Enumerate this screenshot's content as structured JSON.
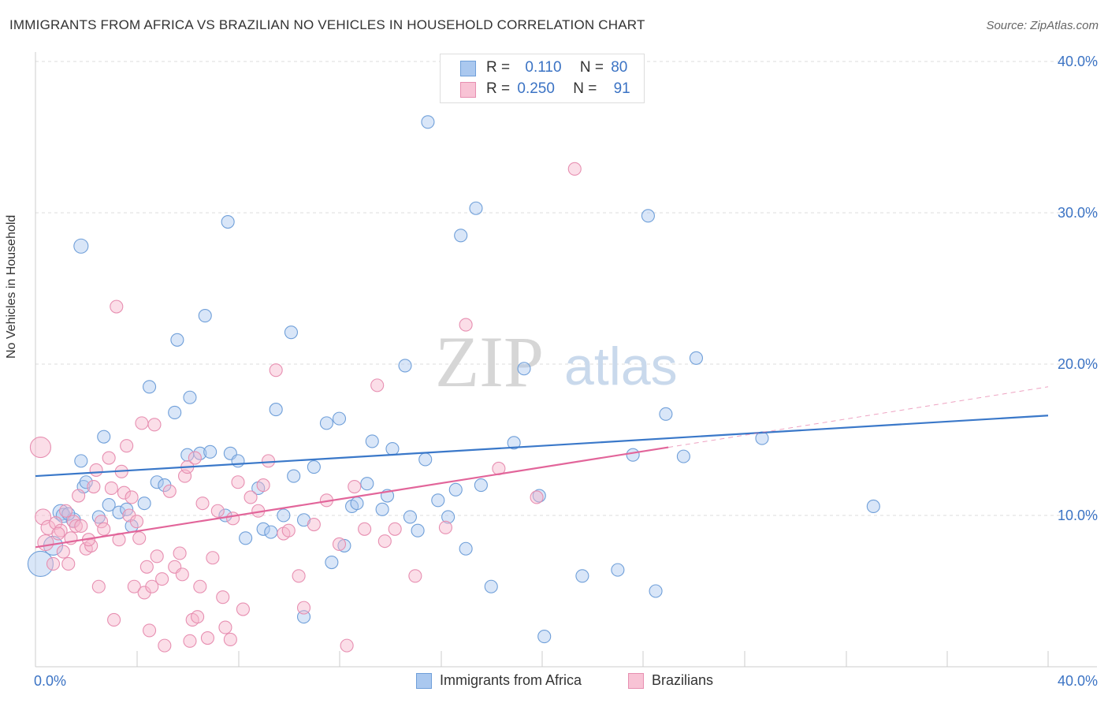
{
  "title": "IMMIGRANTS FROM AFRICA VS BRAZILIAN NO VEHICLES IN HOUSEHOLD CORRELATION CHART",
  "source": "Source: ZipAtlas.com",
  "watermark": {
    "zip": "ZIP",
    "atlas": "atlas"
  },
  "colors": {
    "blue": "#3a78c9",
    "blue_fill": "#aac8ef",
    "pink": "#e2659a",
    "pink_fill": "#f6b6cc",
    "tick_text": "#3b73c4"
  },
  "legend_top": [
    {
      "r_label": "R =",
      "r_value": "0.110",
      "n_label": "N =",
      "n_value": "80"
    },
    {
      "r_label": "R =",
      "r_value": "0.250",
      "n_label": "N =",
      "n_value": "91"
    }
  ],
  "legend_bottom": [
    "Immigrants from Africa",
    "Brazilians"
  ],
  "chart_data": {
    "type": "scatter",
    "title": "IMMIGRANTS FROM AFRICA VS BRAZILIAN NO VEHICLES IN HOUSEHOLD CORRELATION CHART",
    "xlabel": "",
    "ylabel": "No Vehicles in Household",
    "xlim": [
      0,
      40
    ],
    "ylim": [
      0,
      40
    ],
    "x_tick_labels": [
      "0.0%",
      "40.0%"
    ],
    "y_tick_labels": [
      "10.0%",
      "20.0%",
      "30.0%",
      "40.0%"
    ],
    "y_ticks": [
      10,
      20,
      30,
      40
    ],
    "grid": true,
    "legend_position": "top-center",
    "series": [
      {
        "name": "Immigrants from Africa",
        "r": 0.11,
        "n": 80,
        "trend": {
          "x": [
            0,
            40
          ],
          "y": [
            12.6,
            16.6
          ]
        },
        "points": [
          [
            0.2,
            6.8,
            16
          ],
          [
            0.7,
            8.0,
            12
          ],
          [
            1.0,
            10.2,
            10
          ],
          [
            1.1,
            10.0,
            9
          ],
          [
            1.5,
            9.7,
            9
          ],
          [
            1.9,
            11.9,
            8
          ],
          [
            1.8,
            13.6,
            8
          ],
          [
            2.0,
            12.2,
            8
          ],
          [
            1.8,
            27.8,
            9
          ],
          [
            2.7,
            15.2,
            8
          ],
          [
            2.9,
            10.7,
            8
          ],
          [
            3.3,
            10.2,
            8
          ],
          [
            3.8,
            9.3,
            8
          ],
          [
            4.3,
            10.8,
            8
          ],
          [
            4.5,
            18.5,
            8
          ],
          [
            4.8,
            12.2,
            8
          ],
          [
            5.1,
            12.0,
            8
          ],
          [
            5.5,
            16.8,
            8
          ],
          [
            5.6,
            21.6,
            8
          ],
          [
            6.1,
            17.8,
            8
          ],
          [
            6.0,
            14.0,
            8
          ],
          [
            6.5,
            14.1,
            8
          ],
          [
            6.7,
            23.2,
            8
          ],
          [
            6.9,
            14.2,
            8
          ],
          [
            7.6,
            29.4,
            8
          ],
          [
            7.7,
            14.1,
            8
          ],
          [
            8.0,
            13.6,
            8
          ],
          [
            7.5,
            10.0,
            8
          ],
          [
            8.3,
            8.5,
            8
          ],
          [
            8.8,
            11.8,
            8
          ],
          [
            9.0,
            9.1,
            8
          ],
          [
            9.3,
            8.9,
            8
          ],
          [
            9.5,
            17.0,
            8
          ],
          [
            9.8,
            10.0,
            8
          ],
          [
            10.1,
            22.1,
            8
          ],
          [
            10.2,
            12.6,
            8
          ],
          [
            10.6,
            9.7,
            8
          ],
          [
            11.0,
            13.2,
            8
          ],
          [
            11.5,
            16.1,
            8
          ],
          [
            11.7,
            6.9,
            8
          ],
          [
            12.0,
            16.4,
            8
          ],
          [
            12.2,
            8.0,
            8
          ],
          [
            12.5,
            10.6,
            8
          ],
          [
            12.7,
            10.8,
            8
          ],
          [
            13.1,
            12.1,
            8
          ],
          [
            13.3,
            14.9,
            8
          ],
          [
            13.7,
            10.4,
            8
          ],
          [
            13.9,
            11.3,
            8
          ],
          [
            14.1,
            14.4,
            8
          ],
          [
            14.6,
            19.9,
            8
          ],
          [
            14.8,
            9.9,
            8
          ],
          [
            15.1,
            9.0,
            8
          ],
          [
            15.4,
            13.7,
            8
          ],
          [
            15.5,
            36.0,
            8
          ],
          [
            15.9,
            11.0,
            8
          ],
          [
            16.3,
            9.9,
            8
          ],
          [
            16.6,
            11.7,
            8
          ],
          [
            16.8,
            28.5,
            8
          ],
          [
            17.0,
            7.8,
            8
          ],
          [
            17.4,
            30.3,
            8
          ],
          [
            17.6,
            12.0,
            8
          ],
          [
            18.0,
            5.3,
            8
          ],
          [
            18.9,
            14.8,
            8
          ],
          [
            19.3,
            19.7,
            8
          ],
          [
            19.9,
            11.3,
            8
          ],
          [
            20.1,
            2.0,
            8
          ],
          [
            21.6,
            6.0,
            8
          ],
          [
            23.0,
            6.4,
            8
          ],
          [
            23.6,
            14.0,
            8
          ],
          [
            24.2,
            29.8,
            8
          ],
          [
            24.5,
            5.0,
            8
          ],
          [
            24.9,
            16.7,
            8
          ],
          [
            25.6,
            13.9,
            8
          ],
          [
            26.1,
            20.4,
            8
          ],
          [
            28.7,
            15.1,
            8
          ],
          [
            33.1,
            10.6,
            8
          ],
          [
            10.6,
            3.3,
            8
          ],
          [
            3.6,
            10.4,
            8
          ],
          [
            1.3,
            10.1,
            8
          ],
          [
            2.5,
            9.9,
            8
          ]
        ]
      },
      {
        "name": "Brazilians",
        "r": 0.25,
        "n": 91,
        "trend": {
          "x": [
            0,
            25
          ],
          "y": [
            7.9,
            14.5
          ]
        },
        "trend_extension": {
          "x": [
            25,
            40
          ],
          "y": [
            14.5,
            18.5
          ]
        },
        "points": [
          [
            0.2,
            14.5,
            13
          ],
          [
            0.3,
            9.9,
            10
          ],
          [
            0.4,
            8.2,
            10
          ],
          [
            0.5,
            9.2,
            9
          ],
          [
            0.7,
            6.8,
            8
          ],
          [
            0.8,
            9.5,
            8
          ],
          [
            1.0,
            9.0,
            8
          ],
          [
            1.2,
            10.3,
            8
          ],
          [
            1.3,
            6.8,
            8
          ],
          [
            1.4,
            8.5,
            8
          ],
          [
            1.5,
            9.6,
            8
          ],
          [
            1.6,
            9.3,
            8
          ],
          [
            1.7,
            11.3,
            8
          ],
          [
            1.8,
            9.3,
            8
          ],
          [
            2.0,
            7.8,
            8
          ],
          [
            2.2,
            8.0,
            8
          ],
          [
            2.3,
            11.9,
            8
          ],
          [
            2.4,
            13.0,
            8
          ],
          [
            2.5,
            5.3,
            8
          ],
          [
            2.6,
            9.6,
            8
          ],
          [
            2.7,
            9.1,
            8
          ],
          [
            2.9,
            13.8,
            8
          ],
          [
            3.0,
            11.8,
            8
          ],
          [
            3.1,
            3.1,
            8
          ],
          [
            3.2,
            23.8,
            8
          ],
          [
            3.3,
            8.4,
            8
          ],
          [
            3.5,
            11.5,
            8
          ],
          [
            3.6,
            14.6,
            8
          ],
          [
            3.7,
            10.0,
            8
          ],
          [
            3.8,
            11.2,
            8
          ],
          [
            3.9,
            5.3,
            8
          ],
          [
            4.0,
            9.6,
            8
          ],
          [
            4.1,
            8.5,
            8
          ],
          [
            4.2,
            16.1,
            8
          ],
          [
            4.3,
            4.9,
            8
          ],
          [
            4.4,
            6.6,
            8
          ],
          [
            4.5,
            2.4,
            8
          ],
          [
            4.6,
            5.3,
            8
          ],
          [
            4.7,
            16.0,
            8
          ],
          [
            4.8,
            7.3,
            8
          ],
          [
            5.0,
            5.8,
            8
          ],
          [
            5.1,
            1.4,
            8
          ],
          [
            5.3,
            11.6,
            8
          ],
          [
            5.5,
            6.6,
            8
          ],
          [
            5.7,
            7.5,
            8
          ],
          [
            5.8,
            6.1,
            8
          ],
          [
            5.9,
            12.6,
            8
          ],
          [
            6.0,
            13.2,
            8
          ],
          [
            6.1,
            1.7,
            8
          ],
          [
            6.2,
            3.1,
            8
          ],
          [
            6.3,
            13.8,
            8
          ],
          [
            6.4,
            3.3,
            8
          ],
          [
            6.5,
            5.3,
            8
          ],
          [
            6.6,
            10.8,
            8
          ],
          [
            6.8,
            1.9,
            8
          ],
          [
            7.0,
            7.2,
            8
          ],
          [
            7.2,
            10.3,
            8
          ],
          [
            7.4,
            4.6,
            8
          ],
          [
            7.5,
            2.6,
            8
          ],
          [
            7.7,
            1.8,
            8
          ],
          [
            7.8,
            9.8,
            8
          ],
          [
            8.0,
            12.2,
            8
          ],
          [
            8.2,
            3.8,
            8
          ],
          [
            8.5,
            11.2,
            8
          ],
          [
            8.8,
            10.3,
            8
          ],
          [
            9.0,
            12.0,
            8
          ],
          [
            9.2,
            13.6,
            8
          ],
          [
            9.5,
            19.6,
            8
          ],
          [
            9.8,
            8.8,
            8
          ],
          [
            10.0,
            9.0,
            8
          ],
          [
            10.4,
            6.0,
            8
          ],
          [
            10.6,
            3.9,
            8
          ],
          [
            11.0,
            9.4,
            8
          ],
          [
            11.5,
            11.0,
            8
          ],
          [
            12.0,
            8.1,
            8
          ],
          [
            12.3,
            1.4,
            8
          ],
          [
            12.6,
            11.9,
            8
          ],
          [
            13.0,
            9.1,
            8
          ],
          [
            13.5,
            18.6,
            8
          ],
          [
            13.8,
            8.3,
            8
          ],
          [
            14.2,
            9.1,
            8
          ],
          [
            15.0,
            6.0,
            8
          ],
          [
            16.2,
            9.2,
            8
          ],
          [
            17.0,
            22.6,
            8
          ],
          [
            18.3,
            13.1,
            8
          ],
          [
            19.8,
            11.2,
            8
          ],
          [
            21.3,
            32.9,
            8
          ],
          [
            0.9,
            8.8,
            8
          ],
          [
            1.1,
            7.6,
            8
          ],
          [
            2.1,
            8.4,
            8
          ],
          [
            3.4,
            12.9,
            8
          ]
        ]
      }
    ]
  }
}
